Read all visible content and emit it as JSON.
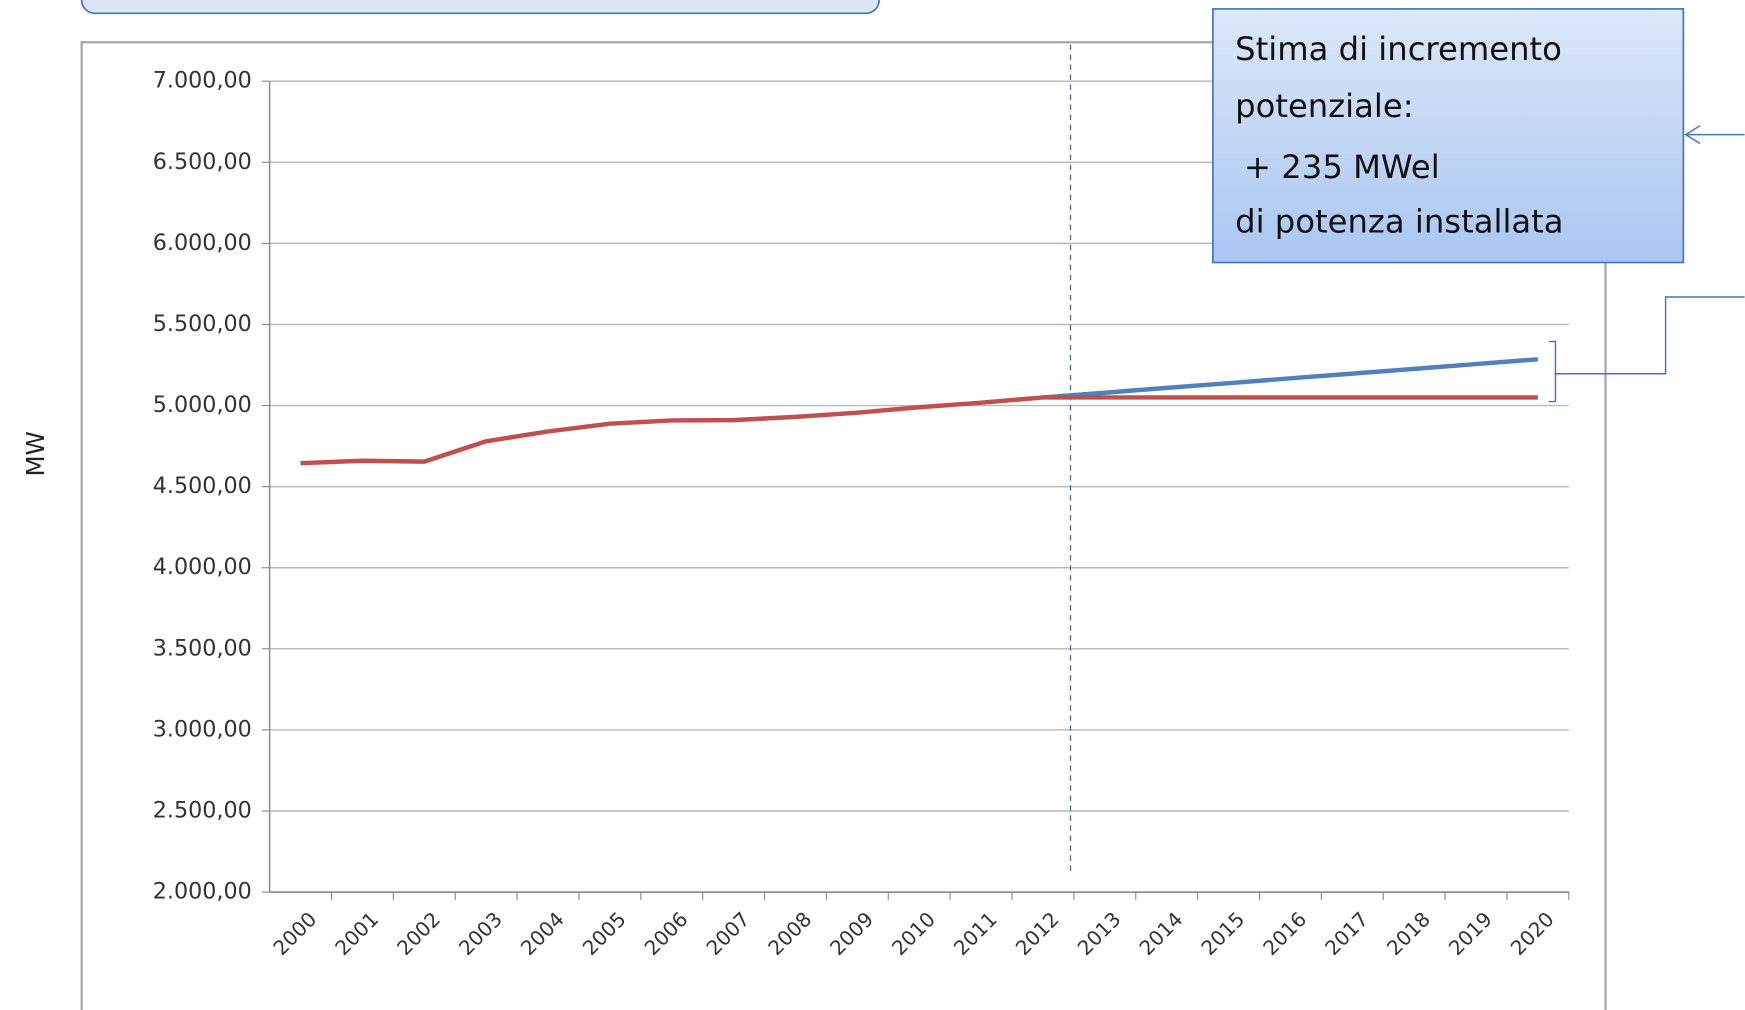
{
  "chart_data": {
    "type": "line",
    "y_label": "MW",
    "annotation": [
      "Stima di incremento",
      "potenziale:",
      "+ 235 MWel",
      "di potenza installata"
    ],
    "categories": [
      "2000",
      "2001",
      "2002",
      "2003",
      "2004",
      "2005",
      "2006",
      "2007",
      "2008",
      "2009",
      "2010",
      "2011",
      "2012",
      "2013",
      "2014",
      "2015",
      "2016",
      "2017",
      "2018",
      "2019",
      "2020"
    ],
    "series": [
      {
        "color": "#4f81bd",
        "values": [
          null,
          null,
          null,
          null,
          null,
          null,
          null,
          null,
          null,
          null,
          null,
          null,
          5050,
          5079,
          5109,
          5138,
          5168,
          5197,
          5226,
          5256,
          5285
        ]
      },
      {
        "color": "#c0504d",
        "values": [
          4645,
          4660,
          4654,
          4780,
          4840,
          4888,
          4908,
          4910,
          4930,
          4956,
          4990,
          5018,
          5050,
          5050,
          5050,
          5050,
          5050,
          5050,
          5050,
          5050,
          5050
        ]
      }
    ],
    "ylim": [
      2000,
      7000
    ],
    "yticks": [
      {
        "value": 2000,
        "label": "2.000,00"
      },
      {
        "value": 2500,
        "label": "2.500,00"
      },
      {
        "value": 3000,
        "label": "3.000,00"
      },
      {
        "value": 3500,
        "label": "3.500,00"
      },
      {
        "value": 4000,
        "label": "4.000,00"
      },
      {
        "value": 4500,
        "label": "4.500,00"
      },
      {
        "value": 5000,
        "label": "5.000,00"
      },
      {
        "value": 5500,
        "label": "5.500,00"
      },
      {
        "value": 6000,
        "label": "6.000,00"
      },
      {
        "value": 6500,
        "label": "6.500,00"
      },
      {
        "value": 7000,
        "label": "7.000,00"
      }
    ],
    "grid": true
  }
}
